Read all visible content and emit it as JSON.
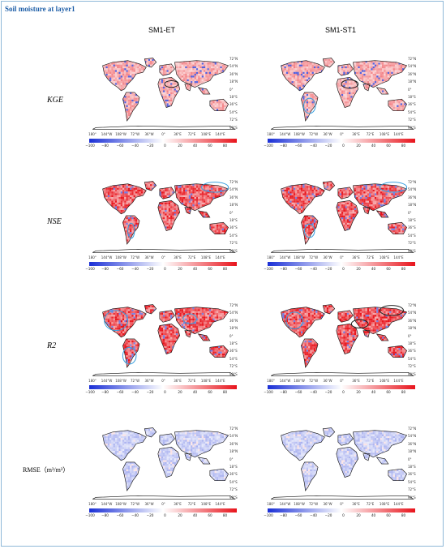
{
  "figure": {
    "title": "Soil moisture at layer1",
    "columns": [
      "SM1-ET",
      "SM1-ST1"
    ],
    "rows": [
      {
        "label": "KGE",
        "italic": true
      },
      {
        "label": "NSE",
        "italic": true
      },
      {
        "label": "R2",
        "italic": true
      },
      {
        "label": "RMSE（m³/m³）",
        "italic": false
      }
    ],
    "lon_ticks": [
      "180°",
      "144°W",
      "108°W",
      "72°W",
      "36°W",
      "0°",
      "36°E",
      "72°E",
      "108°E",
      "144°E"
    ],
    "lat_ticks": [
      "72°N",
      "54°N",
      "36°N",
      "18°N",
      "0°",
      "18°S",
      "36°S",
      "54°S",
      "72°S",
      "90°S"
    ],
    "colorbar_ticks": [
      "−100",
      "−80",
      "−60",
      "−40",
      "−20",
      "0",
      "20",
      "40",
      "60",
      "80"
    ],
    "colors": {
      "negative": "#1a2fd6",
      "neutral": "#ffffff",
      "positive": "#e8141c",
      "circle": "#3aa0e0",
      "frame": "#8fb8d8",
      "title": "#1f5fa8"
    },
    "panel_intensity": [
      [
        0.45,
        0.45
      ],
      [
        0.85,
        0.85
      ],
      [
        0.9,
        0.9
      ],
      [
        -0.25,
        -0.25
      ]
    ]
  }
}
